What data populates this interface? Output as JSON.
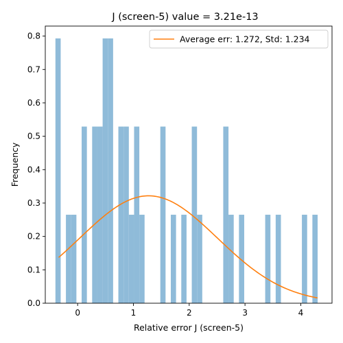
{
  "chart_data": {
    "type": "bar",
    "title": "J (screen-5) value = 3.21e-13",
    "xlabel": "Relative error J (screen-5)",
    "ylabel": "Frequency",
    "xlim": [
      -0.58,
      4.56
    ],
    "ylim": [
      0,
      0.83
    ],
    "xticks": [
      0,
      1,
      2,
      3,
      4
    ],
    "yticks": [
      0.0,
      0.1,
      0.2,
      0.3,
      0.4,
      0.5,
      0.6,
      0.7,
      0.8
    ],
    "bin_width": 0.094,
    "bins": [
      {
        "x": -0.351,
        "value": 0.793
      },
      {
        "x": -0.163,
        "value": 0.265
      },
      {
        "x": -0.069,
        "value": 0.265
      },
      {
        "x": 0.119,
        "value": 0.529
      },
      {
        "x": 0.307,
        "value": 0.529
      },
      {
        "x": 0.401,
        "value": 0.529
      },
      {
        "x": 0.495,
        "value": 0.793
      },
      {
        "x": 0.589,
        "value": 0.793
      },
      {
        "x": 0.777,
        "value": 0.529
      },
      {
        "x": 0.871,
        "value": 0.529
      },
      {
        "x": 0.965,
        "value": 0.265
      },
      {
        "x": 1.059,
        "value": 0.529
      },
      {
        "x": 1.153,
        "value": 0.265
      },
      {
        "x": 1.529,
        "value": 0.529
      },
      {
        "x": 1.717,
        "value": 0.265
      },
      {
        "x": 1.905,
        "value": 0.265
      },
      {
        "x": 2.093,
        "value": 0.529
      },
      {
        "x": 2.187,
        "value": 0.265
      },
      {
        "x": 2.657,
        "value": 0.529
      },
      {
        "x": 2.751,
        "value": 0.265
      },
      {
        "x": 2.939,
        "value": 0.265
      },
      {
        "x": 3.409,
        "value": 0.265
      },
      {
        "x": 3.597,
        "value": 0.265
      },
      {
        "x": 4.067,
        "value": 0.265
      },
      {
        "x": 4.255,
        "value": 0.265
      }
    ],
    "fit_curve": {
      "name": "Average err: 1.272, Std: 1.234",
      "mean": 1.272,
      "std": 1.234,
      "x_range": [
        -0.34,
        4.3
      ]
    },
    "bar_color": "#8fbbd9",
    "curve_color": "#ff7f0e",
    "legend_position": "top-right"
  }
}
